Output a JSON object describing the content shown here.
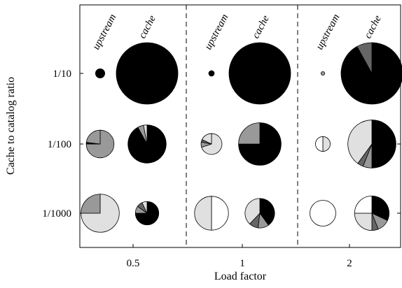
{
  "chart_data": {
    "type": "pie",
    "xlabel": "Load factor",
    "ylabel": "Cache to catalog ratio",
    "x_categories": [
      "0.5",
      "1",
      "2"
    ],
    "y_categories": [
      "1/10",
      "1/100",
      "1/1000"
    ],
    "column_labels": [
      "upstream",
      "cache"
    ],
    "pies": [
      {
        "load": "0.5",
        "ratio": "1/10",
        "kind": "upstream",
        "relative_size": 0.15,
        "slices": [
          {
            "color": "#000000",
            "value": 100
          }
        ]
      },
      {
        "load": "0.5",
        "ratio": "1/10",
        "kind": "cache",
        "relative_size": 1.0,
        "slices": [
          {
            "color": "#000000",
            "value": 100
          }
        ]
      },
      {
        "load": "1",
        "ratio": "1/10",
        "kind": "upstream",
        "relative_size": 0.09,
        "slices": [
          {
            "color": "#000000",
            "value": 100
          }
        ]
      },
      {
        "load": "1",
        "ratio": "1/10",
        "kind": "cache",
        "relative_size": 1.0,
        "slices": [
          {
            "color": "#000000",
            "value": 100
          }
        ]
      },
      {
        "load": "2",
        "ratio": "1/10",
        "kind": "upstream",
        "relative_size": 0.06,
        "slices": [
          {
            "color": "#999999",
            "value": 100
          }
        ]
      },
      {
        "load": "2",
        "ratio": "1/10",
        "kind": "cache",
        "relative_size": 1.0,
        "slices": [
          {
            "color": "#000000",
            "value": 92
          },
          {
            "color": "#666666",
            "value": 8
          }
        ]
      },
      {
        "load": "0.5",
        "ratio": "1/100",
        "kind": "upstream",
        "relative_size": 0.45,
        "slices": [
          {
            "color": "#999999",
            "value": 75
          },
          {
            "color": "#000000",
            "value": 2
          },
          {
            "color": "#999999",
            "value": 23
          }
        ]
      },
      {
        "load": "0.5",
        "ratio": "1/100",
        "kind": "cache",
        "relative_size": 0.62,
        "slices": [
          {
            "color": "#000000",
            "value": 92
          },
          {
            "color": "#999999",
            "value": 5
          },
          {
            "color": "#e0e0e0",
            "value": 3
          }
        ]
      },
      {
        "load": "1",
        "ratio": "1/100",
        "kind": "upstream",
        "relative_size": 0.34,
        "slices": [
          {
            "color": "#e0e0e0",
            "value": 70
          },
          {
            "color": "#999999",
            "value": 8
          },
          {
            "color": "#666666",
            "value": 4
          },
          {
            "color": "#e0e0e0",
            "value": 18
          }
        ]
      },
      {
        "load": "1",
        "ratio": "1/100",
        "kind": "cache",
        "relative_size": 0.69,
        "slices": [
          {
            "color": "#000000",
            "value": 75
          },
          {
            "color": "#999999",
            "value": 25
          }
        ]
      },
      {
        "load": "2",
        "ratio": "1/100",
        "kind": "upstream",
        "relative_size": 0.24,
        "slices": [
          {
            "color": "#e0e0e0",
            "value": 50
          },
          {
            "color": "#ffffff",
            "value": 50
          }
        ]
      },
      {
        "load": "2",
        "ratio": "1/100",
        "kind": "cache",
        "relative_size": 0.78,
        "slices": [
          {
            "color": "#000000",
            "value": 50
          },
          {
            "color": "#999999",
            "value": 6
          },
          {
            "color": "#666666",
            "value": 4
          },
          {
            "color": "#e0e0e0",
            "value": 40
          }
        ]
      },
      {
        "load": "0.5",
        "ratio": "1/1000",
        "kind": "upstream",
        "relative_size": 0.62,
        "slices": [
          {
            "color": "#e0e0e0",
            "value": 75
          },
          {
            "color": "#999999",
            "value": 25
          }
        ]
      },
      {
        "load": "0.5",
        "ratio": "1/1000",
        "kind": "cache",
        "relative_size": 0.38,
        "slices": [
          {
            "color": "#000000",
            "value": 75
          },
          {
            "color": "#999999",
            "value": 10
          },
          {
            "color": "#666666",
            "value": 8
          },
          {
            "color": "#e0e0e0",
            "value": 7
          }
        ]
      },
      {
        "load": "1",
        "ratio": "1/1000",
        "kind": "upstream",
        "relative_size": 0.55,
        "slices": [
          {
            "color": "#ffffff",
            "value": 50
          },
          {
            "color": "#e0e0e0",
            "value": 50
          }
        ]
      },
      {
        "load": "1",
        "ratio": "1/1000",
        "kind": "cache",
        "relative_size": 0.48,
        "slices": [
          {
            "color": "#000000",
            "value": 40
          },
          {
            "color": "#999999",
            "value": 12
          },
          {
            "color": "#666666",
            "value": 10
          },
          {
            "color": "#e0e0e0",
            "value": 38
          }
        ]
      },
      {
        "load": "2",
        "ratio": "1/1000",
        "kind": "upstream",
        "relative_size": 0.42,
        "slices": [
          {
            "color": "#ffffff",
            "value": 100
          }
        ]
      },
      {
        "load": "2",
        "ratio": "1/1000",
        "kind": "cache",
        "relative_size": 0.56,
        "slices": [
          {
            "color": "#000000",
            "value": 32
          },
          {
            "color": "#999999",
            "value": 12
          },
          {
            "color": "#666666",
            "value": 6
          },
          {
            "color": "#e0e0e0",
            "value": 25
          },
          {
            "color": "#ffffff",
            "value": 25
          }
        ]
      }
    ]
  }
}
